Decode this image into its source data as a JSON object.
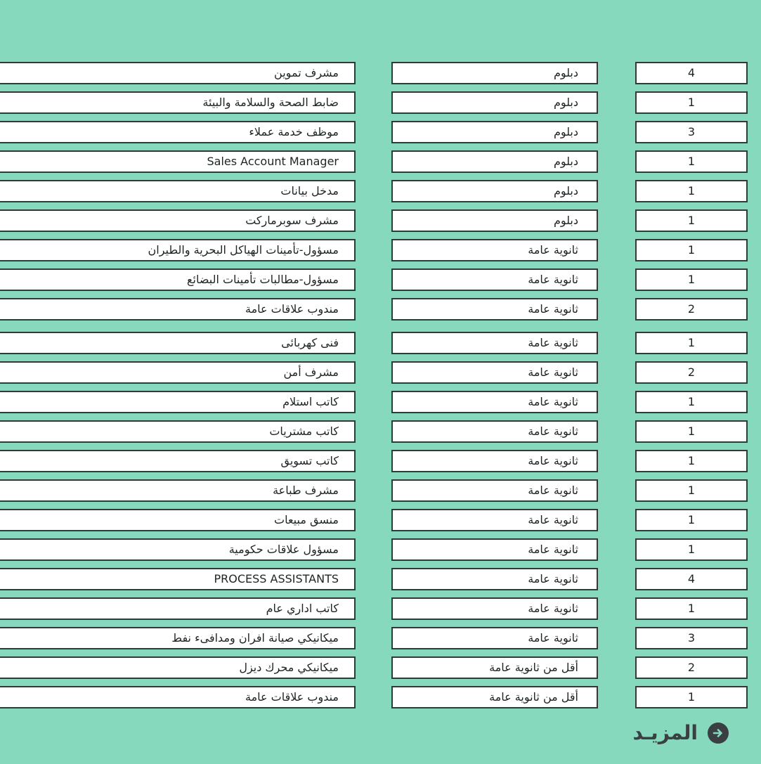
{
  "rows": [
    {
      "title": "مشرف تموين",
      "education": "دبلوم",
      "count": "4"
    },
    {
      "title": "ضابط الصحة والسلامة والبيئة",
      "education": "دبلوم",
      "count": "1"
    },
    {
      "title": "موظف خدمة عملاء",
      "education": "دبلوم",
      "count": "3"
    },
    {
      "title": "Sales Account Manager",
      "education": "دبلوم",
      "count": "1"
    },
    {
      "title": "مدخل بيانات",
      "education": "دبلوم",
      "count": "1"
    },
    {
      "title": "مشرف سوبرماركت",
      "education": "دبلوم",
      "count": "1"
    },
    {
      "title": "مسؤول-تأمينات الهياكل البحرية والطيران",
      "education": "ثانوية عامة",
      "count": "1"
    },
    {
      "title": "مسؤول-مطالبات تأمينات البضائع",
      "education": "ثانوية عامة",
      "count": "1"
    },
    {
      "title": "مندوب علاقات عامة",
      "education": "ثانوية عامة",
      "count": "2"
    },
    {
      "title": "فنى كهربائى",
      "education": "ثانوية عامة",
      "count": "1"
    },
    {
      "title": "مشرف أمن",
      "education": "ثانوية عامة",
      "count": "2"
    },
    {
      "title": "كاتب استلام",
      "education": "ثانوية عامة",
      "count": "1"
    },
    {
      "title": "كاتب مشتريات",
      "education": "ثانوية عامة",
      "count": "1"
    },
    {
      "title": "كاتب تسويق",
      "education": "ثانوية عامة",
      "count": "1"
    },
    {
      "title": "مشرف طباعة",
      "education": "ثانوية عامة",
      "count": "1"
    },
    {
      "title": "منسق مبيعات",
      "education": "ثانوية عامة",
      "count": "1"
    },
    {
      "title": "مسؤول علاقات حكومية",
      "education": "ثانوية عامة",
      "count": "1"
    },
    {
      "title": "PROCESS ASSISTANTS",
      "education": "ثانوية عامة",
      "count": "4"
    },
    {
      "title": "كاتب اداري عام",
      "education": "ثانوية عامة",
      "count": "1"
    },
    {
      "title": "ميكانيكي صيانة افران ومدافىء نفط",
      "education": "ثانوية عامة",
      "count": "3"
    },
    {
      "title": "ميكانيكي محرك ديزل",
      "education": "أقل من ثانوية عامة",
      "count": "2"
    },
    {
      "title": "مندوب علاقات عامة",
      "education": "أقل من ثانوية عامة",
      "count": "1"
    }
  ],
  "more": {
    "label": "المزيـد",
    "icon": "arrow-right-circle-icon"
  }
}
